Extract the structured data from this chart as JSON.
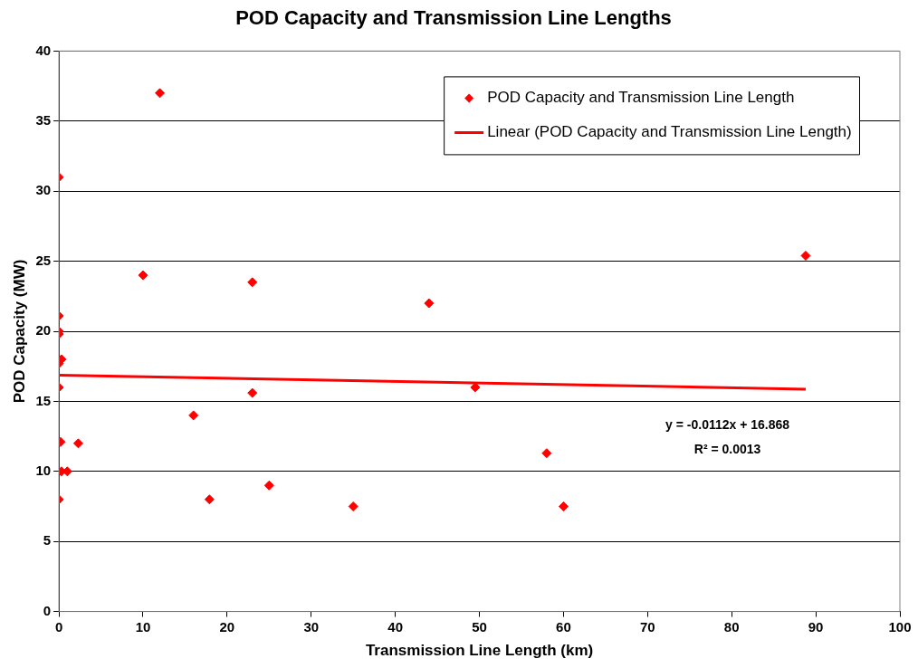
{
  "chart_data": {
    "type": "scatter",
    "title": "POD Capacity and Transmission Line Lengths",
    "xlabel": "Transmission Line Length (km)",
    "ylabel": "POD Capacity (MW)",
    "series": [
      {
        "name": "POD Capacity and Transmission Line Length",
        "color": "#ff0000",
        "marker": "diamond",
        "x": [
          0,
          0,
          0,
          0,
          0.3,
          0,
          0,
          0.2,
          0.3,
          1,
          0,
          2.3,
          12,
          10,
          16,
          17.9,
          23,
          23,
          25,
          35,
          44,
          49.5,
          58,
          60,
          88.8
        ],
        "values": [
          31,
          21.1,
          20,
          19.8,
          18,
          17.7,
          16,
          12.1,
          10,
          10,
          8,
          12,
          37,
          24,
          14,
          8,
          23.5,
          15.6,
          9,
          7.5,
          22,
          16,
          11.3,
          7.5,
          25.4
        ]
      },
      {
        "name": "Linear (POD Capacity and Transmission Line Length)",
        "type": "line",
        "color": "#ff0000",
        "marker": "none",
        "x": [
          0,
          88.8
        ],
        "values": [
          16.87,
          15.87
        ]
      }
    ],
    "annotations": [
      "y = -0.0112x + 16.868",
      "R² = 0.0013"
    ],
    "xlim": [
      0,
      100
    ],
    "xticks": [
      0,
      10,
      20,
      30,
      40,
      50,
      60,
      70,
      80,
      90,
      100
    ],
    "ylim": [
      0,
      40
    ],
    "yticks": [
      0,
      5,
      10,
      15,
      20,
      25,
      30,
      35,
      40
    ],
    "grid": "y",
    "legend": "top right"
  }
}
